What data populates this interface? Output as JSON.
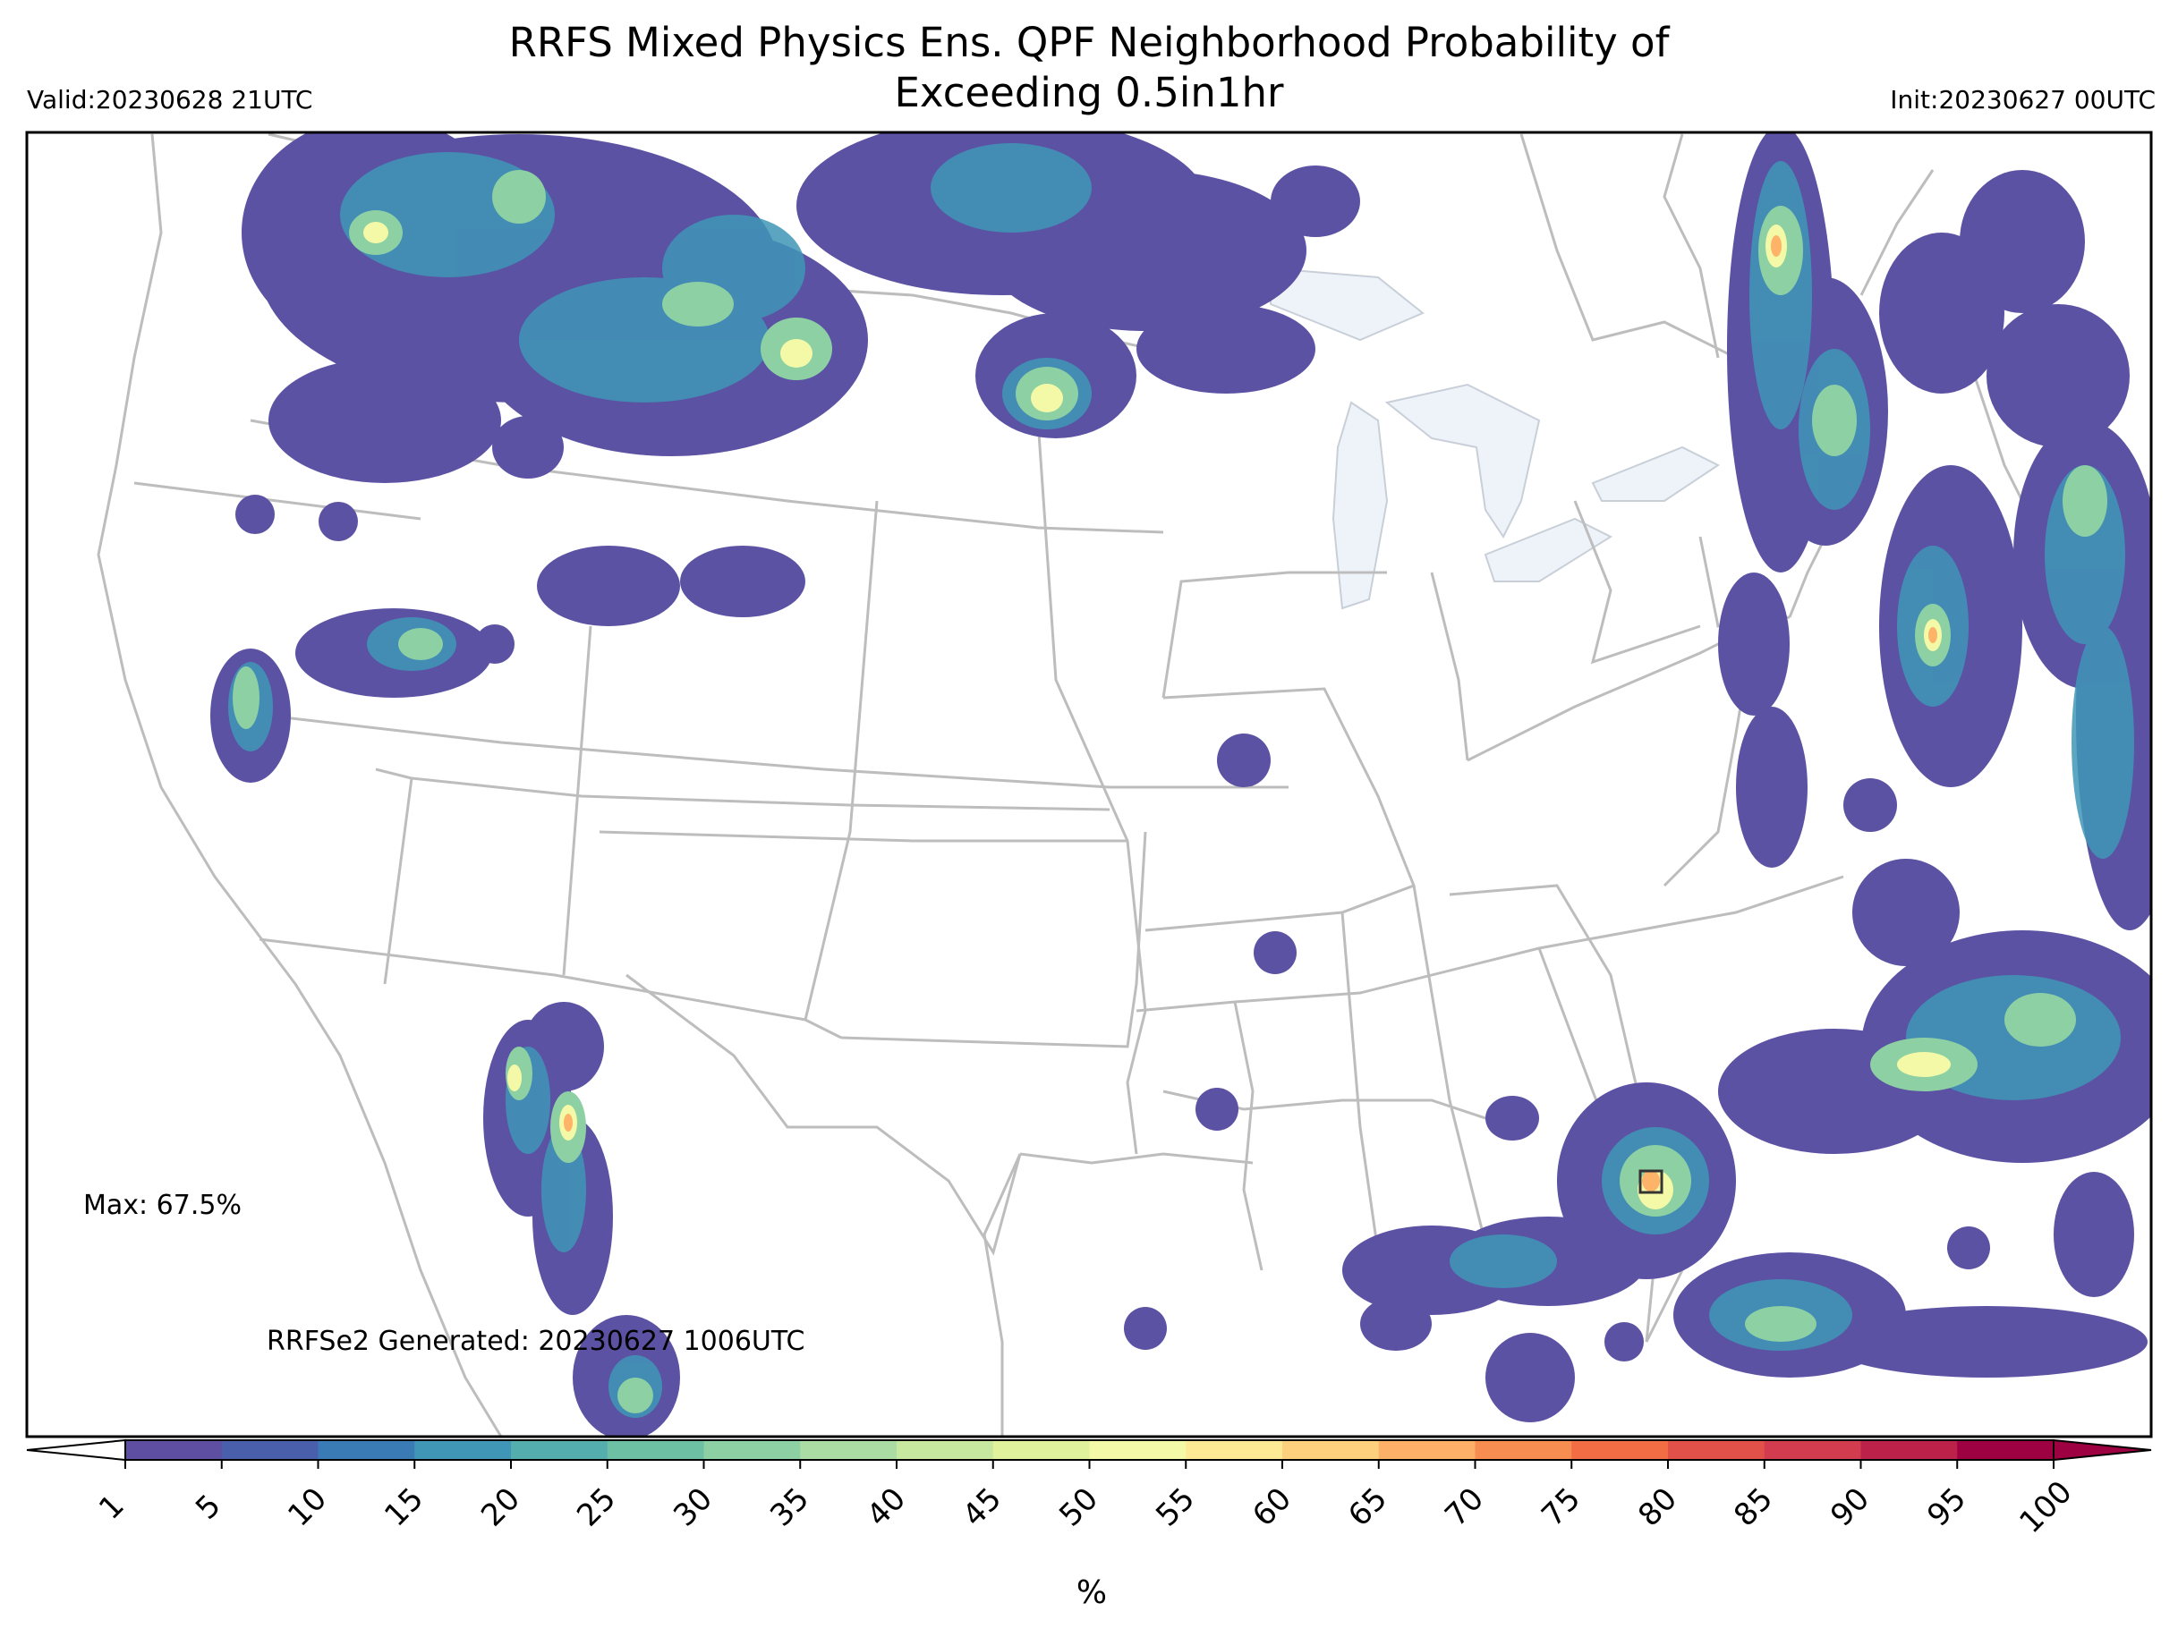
{
  "title_line1": "RRFS Mixed Physics Ens. QPF Neighborhood Probability of",
  "title_line2": "Exceeding 0.5in1hr",
  "valid": "Valid:20230628 21UTC",
  "init": "Init:20230627 00UTC",
  "max_label": "Max: 67.5%",
  "generated": "RRFSe2 Generated: 20230627 1006UTC",
  "colorbar": {
    "unit": "%",
    "ticks": [
      "1",
      "5",
      "10",
      "15",
      "20",
      "25",
      "30",
      "35",
      "40",
      "45",
      "50",
      "55",
      "60",
      "65",
      "70",
      "75",
      "80",
      "85",
      "90",
      "95",
      "100"
    ],
    "colors": [
      "#5e4fa2",
      "#4a5fac",
      "#3a7bb6",
      "#3f96b7",
      "#54aead",
      "#6dc0a4",
      "#8cd0a4",
      "#aadca3",
      "#c7e89f",
      "#e0f29c",
      "#f4f9a7",
      "#fee995",
      "#fdd07d",
      "#fcb068",
      "#f88d51",
      "#f26d43",
      "#e2504a",
      "#d33c4e",
      "#bb2149",
      "#9e0142"
    ]
  },
  "colors": {
    "borders": "#bdbdbd",
    "lakes": "#eef3fa"
  }
}
